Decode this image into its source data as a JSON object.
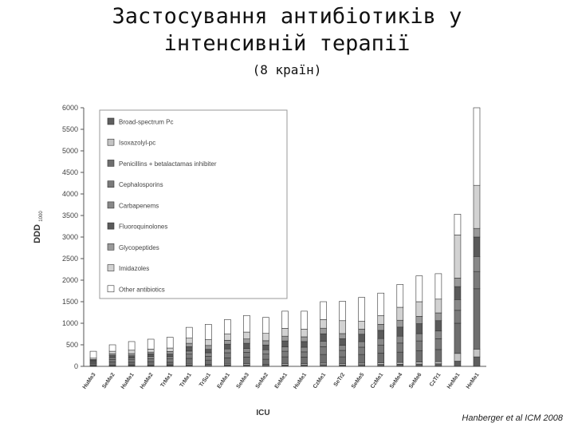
{
  "slide": {
    "title_line1": "Застосування антибіотиків у",
    "title_line2": "інтенсивній терапії",
    "subtitle": "(8 країн)",
    "citation": "Hanberger et al ICM 2008"
  },
  "chart_data": {
    "type": "bar",
    "stacked": true,
    "xlabel": "ICU",
    "ylabel": "DDD",
    "ylabel_sub": "1000",
    "ylim": [
      0,
      6000
    ],
    "yticks": [
      0,
      500,
      1000,
      1500,
      2000,
      2500,
      3000,
      3500,
      4000,
      4500,
      5000,
      5500,
      6000
    ],
    "legend_position": "top-left",
    "categories": [
      "HuMe3",
      "SeMe2",
      "HuMe1",
      "HuMe2",
      "TrMe1",
      "TrMe1",
      "TrSu1",
      "EeMe1",
      "SeMe3",
      "SeMe2",
      "EeMe1",
      "HuMe1",
      "CzMe1",
      "SeTr2",
      "SeMe5",
      "CzMe1",
      "SeMe4",
      "SeMe6",
      "CzTr1",
      "HeMe1",
      "HeMe1"
    ],
    "series": [
      {
        "name": "Broad-spectrum Pc",
        "color": "#5e5e5e",
        "values": [
          10,
          15,
          20,
          15,
          20,
          30,
          25,
          30,
          35,
          25,
          30,
          35,
          40,
          30,
          40,
          45,
          50,
          55,
          60,
          120,
          220
        ]
      },
      {
        "name": "Isoxazolyl-pc",
        "color": "#c4c4c4",
        "values": [
          10,
          15,
          15,
          15,
          15,
          25,
          20,
          25,
          30,
          20,
          30,
          30,
          35,
          30,
          35,
          40,
          40,
          45,
          50,
          180,
          180
        ]
      },
      {
        "name": "Penicillins + betalactamas inhibiter",
        "color": "#6e6e6e",
        "values": [
          40,
          70,
          60,
          80,
          60,
          130,
          100,
          140,
          150,
          120,
          160,
          150,
          200,
          160,
          200,
          220,
          240,
          260,
          280,
          700,
          1400
        ]
      },
      {
        "name": "Cephalosporins",
        "color": "#7a7a7a",
        "values": [
          30,
          60,
          60,
          70,
          80,
          100,
          90,
          120,
          110,
          120,
          130,
          120,
          180,
          150,
          170,
          190,
          210,
          230,
          250,
          300,
          400
        ]
      },
      {
        "name": "Carbapenems",
        "color": "#888888",
        "values": [
          20,
          40,
          40,
          50,
          50,
          70,
          80,
          90,
          90,
          100,
          100,
          110,
          130,
          120,
          130,
          150,
          160,
          170,
          180,
          250,
          350
        ]
      },
      {
        "name": "Fluoroquinolones",
        "color": "#5a5a5a",
        "values": [
          30,
          50,
          50,
          60,
          60,
          100,
          80,
          110,
          120,
          110,
          140,
          130,
          170,
          150,
          170,
          190,
          210,
          230,
          240,
          300,
          450
        ]
      },
      {
        "name": "Glycopeptides",
        "color": "#9a9a9a",
        "values": [
          20,
          40,
          50,
          40,
          60,
          80,
          90,
          90,
          100,
          100,
          110,
          110,
          130,
          120,
          120,
          140,
          160,
          170,
          180,
          200,
          200
        ]
      },
      {
        "name": "Imidazoles",
        "color": "#d2d2d2",
        "values": [
          30,
          60,
          80,
          70,
          80,
          120,
          140,
          150,
          160,
          170,
          180,
          180,
          200,
          300,
          180,
          200,
          300,
          340,
          320,
          1000,
          1000
        ]
      },
      {
        "name": "Other antibiotics",
        "color": "#ffffff",
        "values": [
          160,
          150,
          200,
          230,
          250,
          250,
          350,
          330,
          385,
          370,
          400,
          415,
          415,
          450,
          555,
          525,
          530,
          600,
          590,
          480,
          1800
        ]
      }
    ]
  }
}
